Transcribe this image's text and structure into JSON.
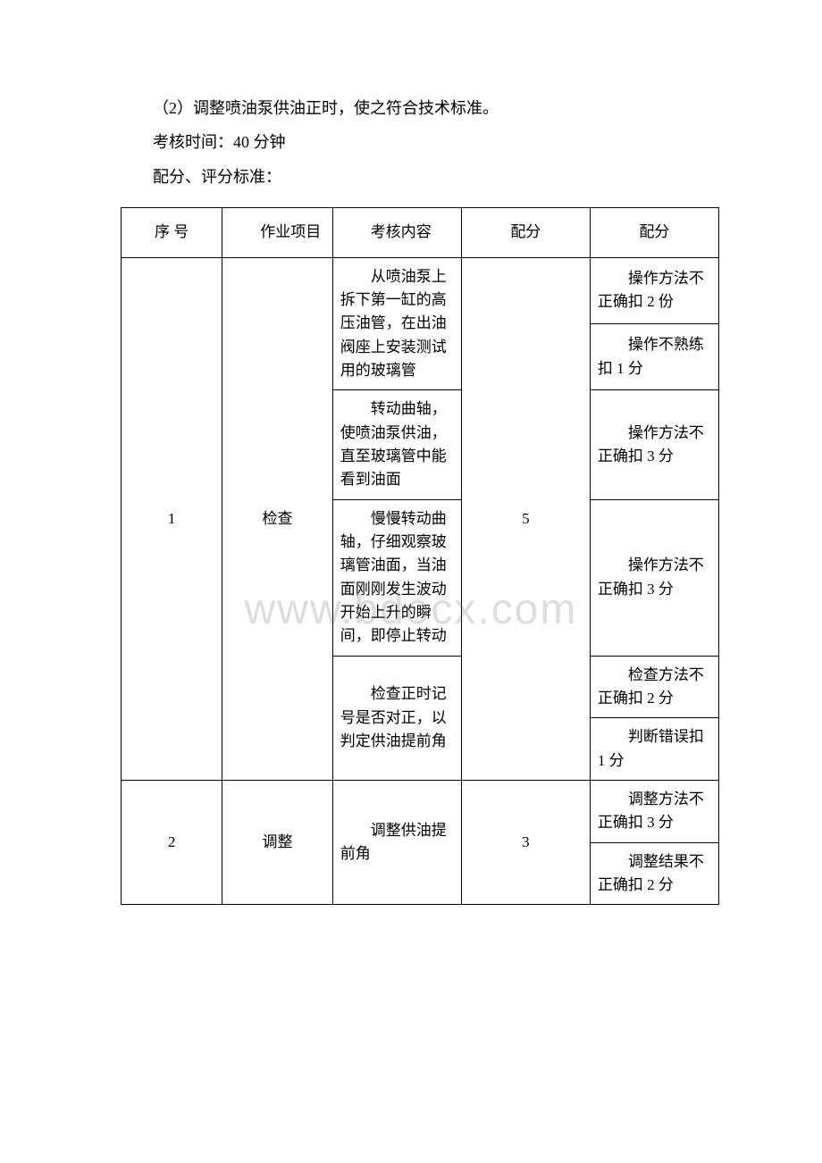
{
  "intro": {
    "line1": "（2）调整喷油泵供油正时，使之符合技术标准。",
    "line2": "考核时间：40 分钟",
    "line3": "配分、评分标准："
  },
  "watermark": "www.bdocx.com",
  "table": {
    "headers": {
      "seq": "序 号",
      "item": "作业项目",
      "content": "考核内容",
      "score": "配分",
      "deduct": "配分"
    },
    "rows": [
      {
        "seq": "1",
        "item": "检查",
        "score": "5",
        "contents": [
          "从喷油泵上拆下第一缸的高压油管，在出油阀座上安装测试用的玻璃管",
          "转动曲轴，使喷油泵供油，直至玻璃管中能看到油面",
          "慢慢转动曲轴，仔细观察玻璃管油面，当油面刚刚发生波动开始上升的瞬间，即停止转动",
          "检查正时记号是否对正，以判定供油提前角"
        ],
        "deducts": [
          [
            "操作方法不正确扣 2 份",
            "操作不熟练扣 1 分"
          ],
          [
            "操作方法不正确扣 3 分"
          ],
          [
            "操作方法不正确扣 3 分"
          ],
          [
            "检查方法不正确扣 2 分",
            "判断错误扣 1 分"
          ]
        ]
      },
      {
        "seq": "2",
        "item": "调整",
        "score": "3",
        "contents": [
          "调整供油提前角"
        ],
        "deducts": [
          [
            "调整方法不正确扣 3 分",
            "调整结果不正确扣 2 分"
          ]
        ]
      }
    ]
  }
}
